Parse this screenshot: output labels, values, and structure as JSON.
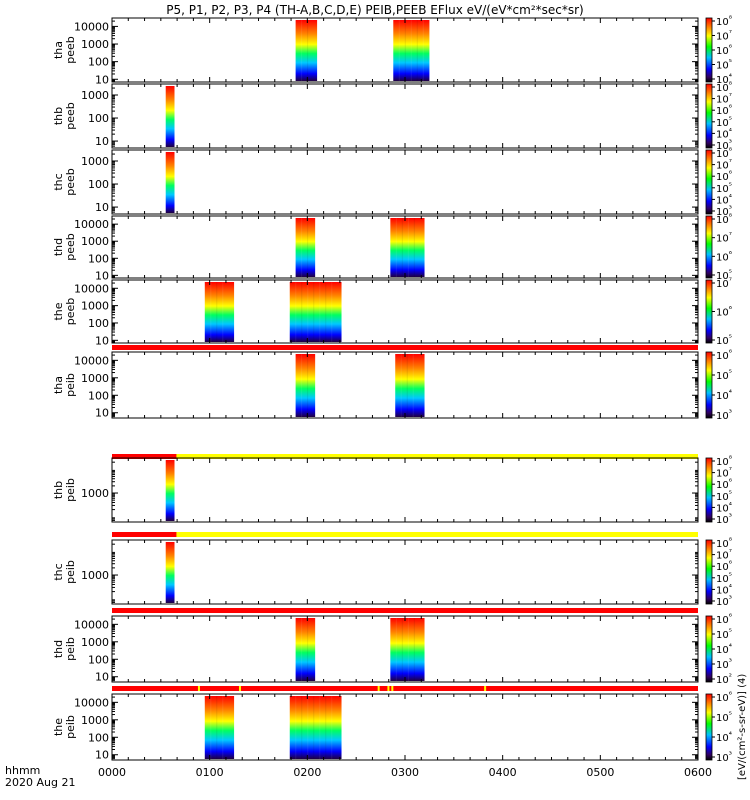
{
  "title": "P5, P1, P2, P3, P4 (TH-A,B,C,D,E) PEIB,PEEB EFlux eV/(eV*cm²*sec*sr)",
  "colorbar_unit_label": "[eV/(cm²-s-sr-eV)] (4)",
  "footer": {
    "hhmm": "hhmm",
    "date": "2020 Aug 21"
  },
  "chart_data": {
    "type": "heatmap",
    "x_axis": {
      "unit": "hhmm",
      "date": "2020 Aug 21",
      "range_hours": [
        0,
        6
      ],
      "ticks": [
        {
          "value": 0,
          "label": "0000"
        },
        {
          "value": 1,
          "label": "0100"
        },
        {
          "value": 2,
          "label": "0200"
        },
        {
          "value": 3,
          "label": "0300"
        },
        {
          "value": 4,
          "label": "0400"
        },
        {
          "value": 5,
          "label": "0500"
        },
        {
          "value": 6,
          "label": "0600"
        }
      ]
    },
    "panels": [
      {
        "probe": "tha",
        "label": "tha",
        "sublabel": "peeb",
        "species": "electron",
        "energy_range": [
          7,
          30000
        ],
        "yticks": [
          {
            "value": 10,
            "label": "10"
          },
          {
            "value": 100,
            "label": "100"
          },
          {
            "value": 1000,
            "label": "1000"
          },
          {
            "value": 10000,
            "label": "10000"
          }
        ],
        "colorbar": {
          "min_exp": 4,
          "max_exp": 8,
          "labels": [
            "10⁴",
            "10⁵",
            "10⁶",
            "10⁷",
            "10⁸"
          ]
        },
        "flag_bar": null,
        "data_intervals": [
          {
            "start": 1.88,
            "end": 2.1
          },
          {
            "start": 2.88,
            "end": 3.25
          }
        ]
      },
      {
        "probe": "thb",
        "label": "thb",
        "sublabel": "peeb",
        "species": "electron",
        "energy_range": [
          5,
          3000
        ],
        "yticks": [
          {
            "value": 10,
            "label": "10"
          },
          {
            "value": 100,
            "label": "100"
          },
          {
            "value": 1000,
            "label": "1000"
          }
        ],
        "colorbar": {
          "min_exp": 3,
          "max_exp": 8,
          "labels": [
            "10³",
            "10⁴",
            "10⁵",
            "10⁶",
            "10⁷",
            "10⁸"
          ]
        },
        "flag_bar": null,
        "data_intervals": [
          {
            "start": 0.55,
            "end": 0.64
          }
        ]
      },
      {
        "probe": "thc",
        "label": "thc",
        "sublabel": "peeb",
        "species": "electron",
        "energy_range": [
          5,
          3000
        ],
        "yticks": [
          {
            "value": 10,
            "label": "10"
          },
          {
            "value": 100,
            "label": "100"
          },
          {
            "value": 1000,
            "label": "1000"
          }
        ],
        "colorbar": {
          "min_exp": 3,
          "max_exp": 8,
          "labels": [
            "10³",
            "10⁴",
            "10⁵",
            "10⁶",
            "10⁷",
            "10⁸"
          ]
        },
        "flag_bar": null,
        "data_intervals": [
          {
            "start": 0.55,
            "end": 0.64
          }
        ]
      },
      {
        "probe": "thd",
        "label": "thd",
        "sublabel": "peeb",
        "species": "electron",
        "energy_range": [
          7,
          30000
        ],
        "yticks": [
          {
            "value": 10,
            "label": "10"
          },
          {
            "value": 100,
            "label": "100"
          },
          {
            "value": 1000,
            "label": "1000"
          },
          {
            "value": 10000,
            "label": "10000"
          }
        ],
        "colorbar": {
          "min_exp": 5,
          "max_exp": 8,
          "labels": [
            "10⁵",
            "10⁶",
            "10⁷",
            "10⁸"
          ]
        },
        "flag_bar": null,
        "data_intervals": [
          {
            "start": 1.88,
            "end": 2.08
          },
          {
            "start": 2.85,
            "end": 3.2
          }
        ]
      },
      {
        "probe": "the",
        "label": "the",
        "sublabel": "peeb",
        "species": "electron",
        "energy_range": [
          7,
          30000
        ],
        "yticks": [
          {
            "value": 10,
            "label": "10"
          },
          {
            "value": 100,
            "label": "100"
          },
          {
            "value": 1000,
            "label": "1000"
          },
          {
            "value": 10000,
            "label": "10000"
          }
        ],
        "colorbar": {
          "min_exp": 5,
          "max_exp": 7,
          "labels": [
            "10⁵",
            "10⁶",
            "10⁷"
          ]
        },
        "flag_bar": null,
        "data_intervals": [
          {
            "start": 0.95,
            "end": 1.25
          },
          {
            "start": 1.82,
            "end": 2.35
          }
        ]
      },
      {
        "probe": "tha",
        "label": "tha",
        "sublabel": "peib",
        "species": "ion",
        "energy_range": [
          5,
          30000
        ],
        "yticks": [
          {
            "value": 10,
            "label": "10"
          },
          {
            "value": 100,
            "label": "100"
          },
          {
            "value": 1000,
            "label": "1000"
          },
          {
            "value": 10000,
            "label": "10000"
          }
        ],
        "colorbar": {
          "min_exp": 3,
          "max_exp": 6,
          "labels": [
            "10³",
            "10⁴",
            "10⁵",
            "10⁶"
          ]
        },
        "flag_bar": {
          "segments": [
            {
              "start": 0,
              "end": 6,
              "color": "#ff0000"
            }
          ]
        },
        "data_intervals": [
          {
            "start": 1.88,
            "end": 2.08
          },
          {
            "start": 2.9,
            "end": 3.2
          }
        ]
      },
      {
        "probe": "thb",
        "label": "thb",
        "sublabel": "peib",
        "species": "ion",
        "energy_range": [
          60,
          30000
        ],
        "yticks": [
          {
            "value": 1000,
            "label": "1000"
          }
        ],
        "colorbar": {
          "min_exp": 3,
          "max_exp": 8,
          "labels": [
            "10³",
            "10⁴",
            "10⁵",
            "10⁶",
            "10⁷",
            "10⁸"
          ]
        },
        "flag_bar": {
          "segments": [
            {
              "start": 0,
              "end": 0.66,
              "color": "#ff0000"
            },
            {
              "start": 0.66,
              "end": 6,
              "color": "#ffff00"
            }
          ]
        },
        "data_intervals": [
          {
            "start": 0.55,
            "end": 0.64
          }
        ]
      },
      {
        "probe": "thc",
        "label": "thc",
        "sublabel": "peib",
        "species": "ion",
        "energy_range": [
          60,
          30000
        ],
        "yticks": [
          {
            "value": 1000,
            "label": "1000"
          }
        ],
        "colorbar": {
          "min_exp": 3,
          "max_exp": 8,
          "labels": [
            "10³",
            "10⁴",
            "10⁵",
            "10⁶",
            "10⁷",
            "10⁸"
          ]
        },
        "flag_bar": {
          "segments": [
            {
              "start": 0,
              "end": 0.66,
              "color": "#ff0000"
            },
            {
              "start": 0.66,
              "end": 6,
              "color": "#ffff00"
            }
          ]
        },
        "data_intervals": [
          {
            "start": 0.55,
            "end": 0.64
          }
        ]
      },
      {
        "probe": "thd",
        "label": "thd",
        "sublabel": "peib",
        "species": "ion",
        "energy_range": [
          5,
          30000
        ],
        "yticks": [
          {
            "value": 10,
            "label": "10"
          },
          {
            "value": 100,
            "label": "100"
          },
          {
            "value": 1000,
            "label": "1000"
          },
          {
            "value": 10000,
            "label": "10000"
          }
        ],
        "colorbar": {
          "min_exp": 2,
          "max_exp": 6,
          "labels": [
            "10²",
            "10³",
            "10⁴",
            "10⁵",
            "10⁶"
          ]
        },
        "flag_bar": {
          "segments": [
            {
              "start": 0,
              "end": 6,
              "color": "#ff0000"
            }
          ]
        },
        "data_intervals": [
          {
            "start": 1.88,
            "end": 2.08
          },
          {
            "start": 2.85,
            "end": 3.2
          }
        ]
      },
      {
        "probe": "the",
        "label": "the",
        "sublabel": "peib",
        "species": "ion",
        "energy_range": [
          5,
          30000
        ],
        "yticks": [
          {
            "value": 10,
            "label": "10"
          },
          {
            "value": 100,
            "label": "100"
          },
          {
            "value": 1000,
            "label": "1000"
          },
          {
            "value": 10000,
            "label": "10000"
          }
        ],
        "colorbar": {
          "min_exp": 3,
          "max_exp": 6,
          "labels": [
            "10³",
            "10⁴",
            "10⁵",
            "10⁶"
          ]
        },
        "flag_bar": {
          "segments": [
            {
              "start": 0,
              "end": 6,
              "color": "#ff0000"
            },
            {
              "start": 0.88,
              "end": 0.9,
              "color": "#ffff00"
            },
            {
              "start": 1.3,
              "end": 1.32,
              "color": "#ffff00"
            },
            {
              "start": 2.72,
              "end": 2.74,
              "color": "#ffff00"
            },
            {
              "start": 2.82,
              "end": 2.84,
              "color": "#ffff00"
            },
            {
              "start": 2.86,
              "end": 2.88,
              "color": "#ffff00"
            },
            {
              "start": 3.81,
              "end": 3.83,
              "color": "#ffff00"
            }
          ]
        },
        "data_intervals": [
          {
            "start": 0.95,
            "end": 1.25
          },
          {
            "start": 1.82,
            "end": 2.35
          }
        ]
      }
    ]
  }
}
